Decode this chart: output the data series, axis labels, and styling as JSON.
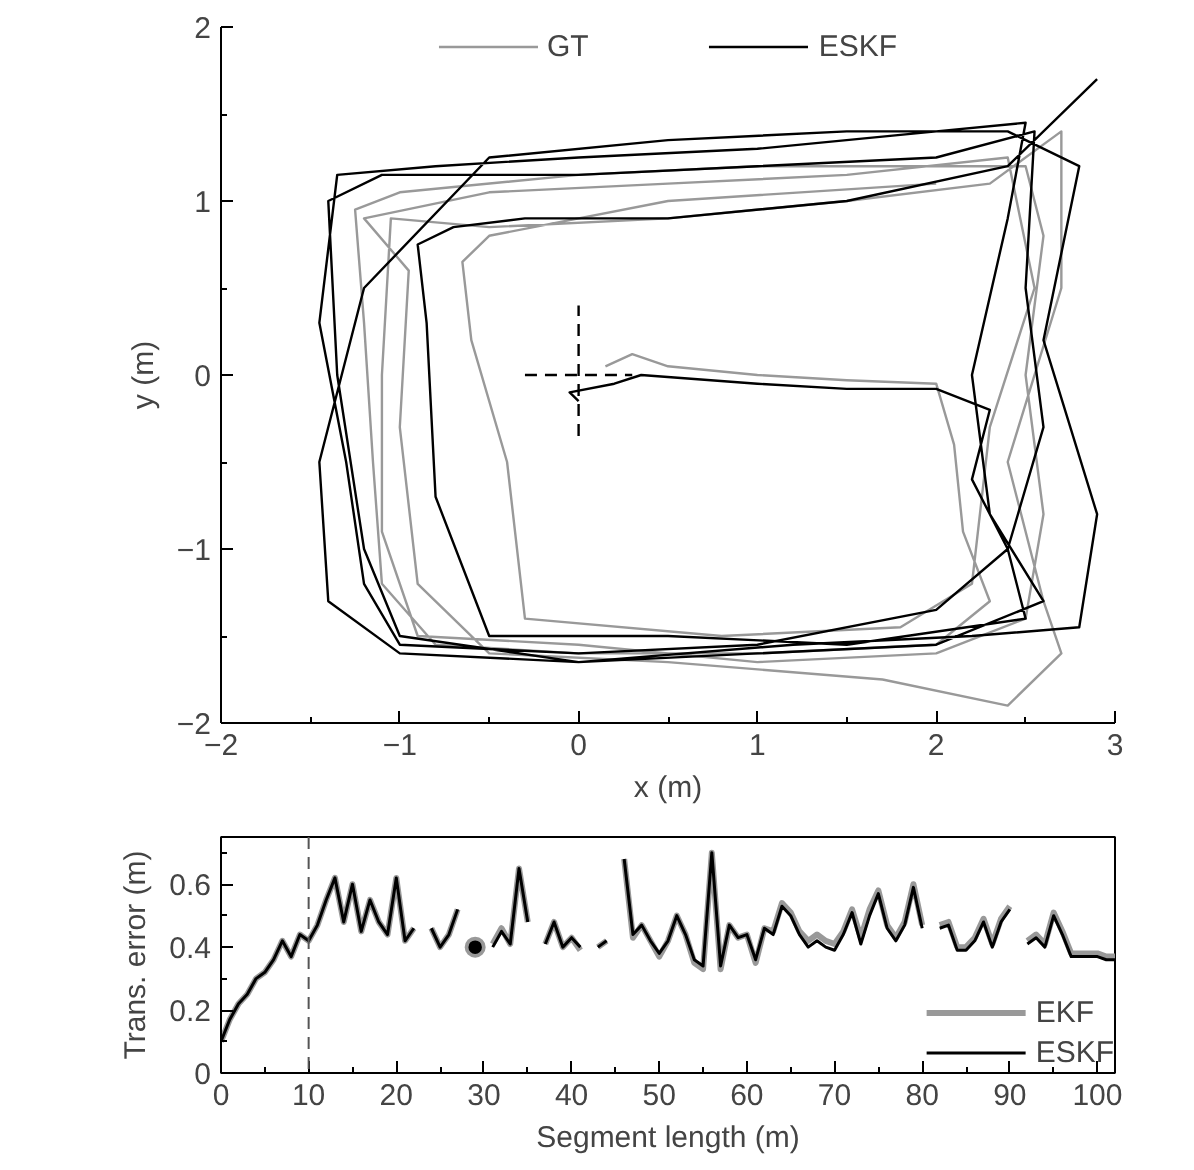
{
  "chart_data": [
    {
      "type": "line",
      "xlabel": "x (m)",
      "ylabel": "y (m)",
      "xlim": [
        -2,
        3
      ],
      "ylim": [
        -2,
        2
      ],
      "xticks": [
        -2,
        {
          "value": -1.5,
          "label": null
        },
        -1,
        {
          "value": -0.5,
          "label": null
        },
        0,
        {
          "value": 0.5,
          "label": null
        },
        1,
        {
          "value": 1.5,
          "label": null
        },
        2,
        {
          "value": 2.5,
          "label": null
        },
        3
      ],
      "yticks": [
        -2,
        {
          "value": -1.5,
          "label": null
        },
        -1,
        {
          "value": -0.5,
          "label": null
        },
        0,
        {
          "value": 0.5,
          "label": null
        },
        1,
        {
          "value": 1.5,
          "label": null
        },
        2
      ],
      "grid": false,
      "legend": "top",
      "series": [
        {
          "name": "GT",
          "color": "#999999",
          "x": [
            0.15,
            0.3,
            0.5,
            1.0,
            1.5,
            2.0,
            2.1,
            2.15,
            2.3,
            2.0,
            1.0,
            0.0,
            -0.8,
            -1.1,
            -1.15,
            -1.2,
            -1.25,
            -1.0,
            0.0,
            1.0,
            2.0,
            2.5,
            2.6,
            2.5,
            2.6,
            2.5,
            2.0,
            1.0,
            0.0,
            -0.9,
            -1.1,
            -1.1,
            -1.05,
            -0.5,
            0.5,
            1.5,
            2.3,
            2.7,
            2.7,
            2.4,
            2.6,
            2.7,
            2.4,
            1.7,
            0.5,
            -0.5,
            -0.9,
            -1.0,
            -0.95,
            -1.2,
            -0.5,
            0.5,
            1.5,
            2.4,
            2.55,
            2.3,
            2.2,
            1.8,
            0.8,
            -0.3,
            -0.4,
            -0.6,
            -0.65,
            -0.5,
            0.5,
            2.0
          ],
          "values": [
            0.05,
            0.12,
            0.05,
            0.0,
            -0.03,
            -0.05,
            -0.4,
            -0.9,
            -1.3,
            -1.55,
            -1.6,
            -1.6,
            -1.55,
            -1.2,
            -0.5,
            0.3,
            0.95,
            1.05,
            1.15,
            1.2,
            1.2,
            1.2,
            0.8,
            0.0,
            -0.8,
            -1.4,
            -1.6,
            -1.65,
            -1.55,
            -1.5,
            -0.9,
            0.0,
            0.9,
            0.85,
            0.9,
            1.0,
            1.1,
            1.4,
            0.5,
            -0.5,
            -1.3,
            -1.6,
            -1.9,
            -1.75,
            -1.65,
            -1.6,
            -1.2,
            -0.3,
            0.6,
            0.9,
            1.05,
            1.1,
            1.15,
            1.25,
            0.5,
            -0.3,
            -1.2,
            -1.45,
            -1.5,
            -1.4,
            -0.5,
            0.2,
            0.65,
            0.8,
            1.0,
            1.1
          ]
        },
        {
          "name": "ESKF",
          "color": "#000000",
          "x": [
            0.0,
            -0.05,
            0.2,
            0.35,
            1.0,
            1.5,
            2.0,
            2.3,
            2.2,
            2.4,
            2.0,
            1.0,
            0.0,
            -1.0,
            -1.2,
            -1.3,
            -1.45,
            -1.35,
            -0.8,
            0.0,
            1.0,
            2.0,
            2.5,
            2.4,
            2.2,
            2.3,
            2.6,
            2.0,
            1.0,
            0.0,
            -1.0,
            -1.4,
            -1.45,
            -1.2,
            -0.5,
            0.5,
            1.5,
            2.4,
            2.8,
            2.6,
            2.9,
            2.8,
            2.2,
            1.2,
            0.0,
            -1.0,
            -1.2,
            -1.35,
            -1.4,
            -1.1,
            0.0,
            1.0,
            2.0,
            2.55,
            2.5,
            2.6,
            2.4,
            2.5,
            1.5,
            0.5,
            -0.5,
            -0.8,
            -0.85,
            -0.9,
            -0.7,
            -0.3,
            0.5,
            1.5,
            2.4,
            2.9
          ],
          "values": [
            -0.15,
            -0.1,
            -0.05,
            0.0,
            -0.05,
            -0.08,
            -0.08,
            -0.2,
            -0.6,
            -1.0,
            -1.35,
            -1.55,
            -1.6,
            -1.55,
            -1.2,
            -0.5,
            0.3,
            1.15,
            1.2,
            1.25,
            1.3,
            1.4,
            1.45,
            0.9,
            0.0,
            -0.8,
            -1.3,
            -1.55,
            -1.6,
            -1.65,
            -1.6,
            -1.3,
            -0.5,
            0.5,
            1.25,
            1.35,
            1.4,
            1.4,
            1.2,
            0.2,
            -0.8,
            -1.45,
            -1.5,
            -1.55,
            -1.65,
            -1.5,
            -1.0,
            0.0,
            1.0,
            1.15,
            1.15,
            1.2,
            1.25,
            1.4,
            0.5,
            -0.3,
            -1.0,
            -1.4,
            -1.55,
            -1.5,
            -1.5,
            -0.7,
            0.3,
            0.75,
            0.85,
            0.9,
            0.9,
            1.0,
            1.2,
            1.7
          ]
        },
        {
          "color": "#000000",
          "line_style": "dashed",
          "x": [
            -0.3,
            0.3
          ],
          "values": [
            0,
            0
          ]
        },
        {
          "color": "#000000",
          "line_style": "dashed",
          "x": [
            0,
            0
          ],
          "values": [
            -0.35,
            0.4
          ]
        }
      ]
    },
    {
      "type": "line",
      "xlabel": "Segment length (m)",
      "ylabel": "Trans. error (m)",
      "xlim": [
        0,
        102
      ],
      "ylim": [
        0,
        0.75
      ],
      "xticks": [
        0,
        {
          "value": 5,
          "label": null
        },
        10,
        {
          "value": 15,
          "label": null
        },
        20,
        {
          "value": 25,
          "label": null
        },
        30,
        {
          "value": 35,
          "label": null
        },
        40,
        {
          "value": 45,
          "label": null
        },
        50,
        {
          "value": 55,
          "label": null
        },
        60,
        {
          "value": 65,
          "label": null
        },
        70,
        {
          "value": 75,
          "label": null
        },
        80,
        {
          "value": 85,
          "label": null
        },
        90,
        {
          "value": 95,
          "label": null
        },
        100
      ],
      "yticks": [
        0,
        {
          "value": 0.1,
          "label": null
        },
        0.2,
        {
          "value": 0.3,
          "label": null
        },
        0.4,
        {
          "value": 0.5,
          "label": null
        },
        0.6,
        {
          "value": 0.7,
          "label": null
        }
      ],
      "grid": false,
      "legend": "bottom right",
      "ref_lines": [
        {
          "axis": "x",
          "value": 10,
          "color": "#555555",
          "line_style": "dashed"
        }
      ],
      "x": [
        0,
        1,
        2,
        3,
        4,
        5,
        6,
        7,
        8,
        9,
        10,
        11,
        12,
        13,
        14,
        15,
        16,
        17,
        18,
        19,
        20,
        21,
        22,
        23,
        24,
        25,
        26,
        27,
        28,
        29,
        30,
        31,
        32,
        33,
        34,
        35,
        36,
        37,
        38,
        39,
        40,
        41,
        42,
        43,
        44,
        45,
        46,
        47,
        48,
        49,
        50,
        51,
        52,
        53,
        54,
        55,
        56,
        57,
        58,
        59,
        60,
        61,
        62,
        63,
        64,
        65,
        66,
        67,
        68,
        69,
        70,
        71,
        72,
        73,
        74,
        75,
        76,
        77,
        78,
        79,
        80,
        81,
        82,
        83,
        84,
        85,
        86,
        87,
        88,
        89,
        90,
        91,
        92,
        93,
        94,
        95,
        96,
        97,
        98,
        99,
        100,
        101,
        102
      ],
      "series": [
        {
          "name": "EKF",
          "color": "#999999",
          "values": [
            0.1,
            0.17,
            0.22,
            0.25,
            0.3,
            0.32,
            0.36,
            0.42,
            0.37,
            0.44,
            0.42,
            0.47,
            0.55,
            0.62,
            0.48,
            0.6,
            0.45,
            0.55,
            0.48,
            0.44,
            0.62,
            0.42,
            0.46,
            null,
            0.46,
            0.4,
            0.44,
            0.52,
            null,
            0.4,
            null,
            0.41,
            0.46,
            0.41,
            0.65,
            0.48,
            null,
            0.41,
            0.48,
            0.4,
            0.43,
            0.39,
            null,
            0.4,
            0.42,
            null,
            0.68,
            0.43,
            0.47,
            0.42,
            0.37,
            0.42,
            0.5,
            0.44,
            0.35,
            0.33,
            0.7,
            0.33,
            0.47,
            0.43,
            0.44,
            0.35,
            0.46,
            0.45,
            0.54,
            0.51,
            0.45,
            0.42,
            0.44,
            0.42,
            0.41,
            0.45,
            0.52,
            0.43,
            0.52,
            0.58,
            0.47,
            0.43,
            0.48,
            0.6,
            0.47,
            null,
            0.47,
            0.48,
            0.4,
            0.4,
            0.43,
            0.49,
            0.41,
            0.49,
            0.53,
            null,
            0.42,
            0.44,
            0.41,
            0.51,
            0.45,
            0.38,
            0.38,
            0.38,
            0.38,
            0.37,
            0.37
          ]
        },
        {
          "name": "ESKF",
          "color": "#000000",
          "values": [
            0.1,
            0.17,
            0.22,
            0.25,
            0.3,
            0.32,
            0.36,
            0.42,
            0.37,
            0.44,
            0.42,
            0.47,
            0.55,
            0.62,
            0.48,
            0.6,
            0.45,
            0.55,
            0.48,
            0.44,
            0.62,
            0.42,
            0.46,
            null,
            0.46,
            0.4,
            0.44,
            0.52,
            null,
            0.4,
            null,
            0.4,
            0.45,
            0.41,
            0.65,
            0.48,
            null,
            0.41,
            0.48,
            0.4,
            0.43,
            0.4,
            null,
            0.4,
            0.42,
            null,
            0.68,
            0.44,
            0.47,
            0.42,
            0.38,
            0.42,
            0.5,
            0.44,
            0.36,
            0.34,
            0.7,
            0.34,
            0.47,
            0.43,
            0.44,
            0.36,
            0.46,
            0.44,
            0.53,
            0.5,
            0.44,
            0.4,
            0.42,
            0.4,
            0.39,
            0.44,
            0.51,
            0.41,
            0.5,
            0.57,
            0.46,
            0.42,
            0.47,
            0.59,
            0.46,
            null,
            0.46,
            0.47,
            0.39,
            0.39,
            0.42,
            0.48,
            0.4,
            0.48,
            0.52,
            null,
            0.41,
            0.43,
            0.4,
            0.5,
            0.44,
            0.37,
            0.37,
            0.37,
            0.37,
            0.36,
            0.36
          ]
        }
      ]
    }
  ]
}
